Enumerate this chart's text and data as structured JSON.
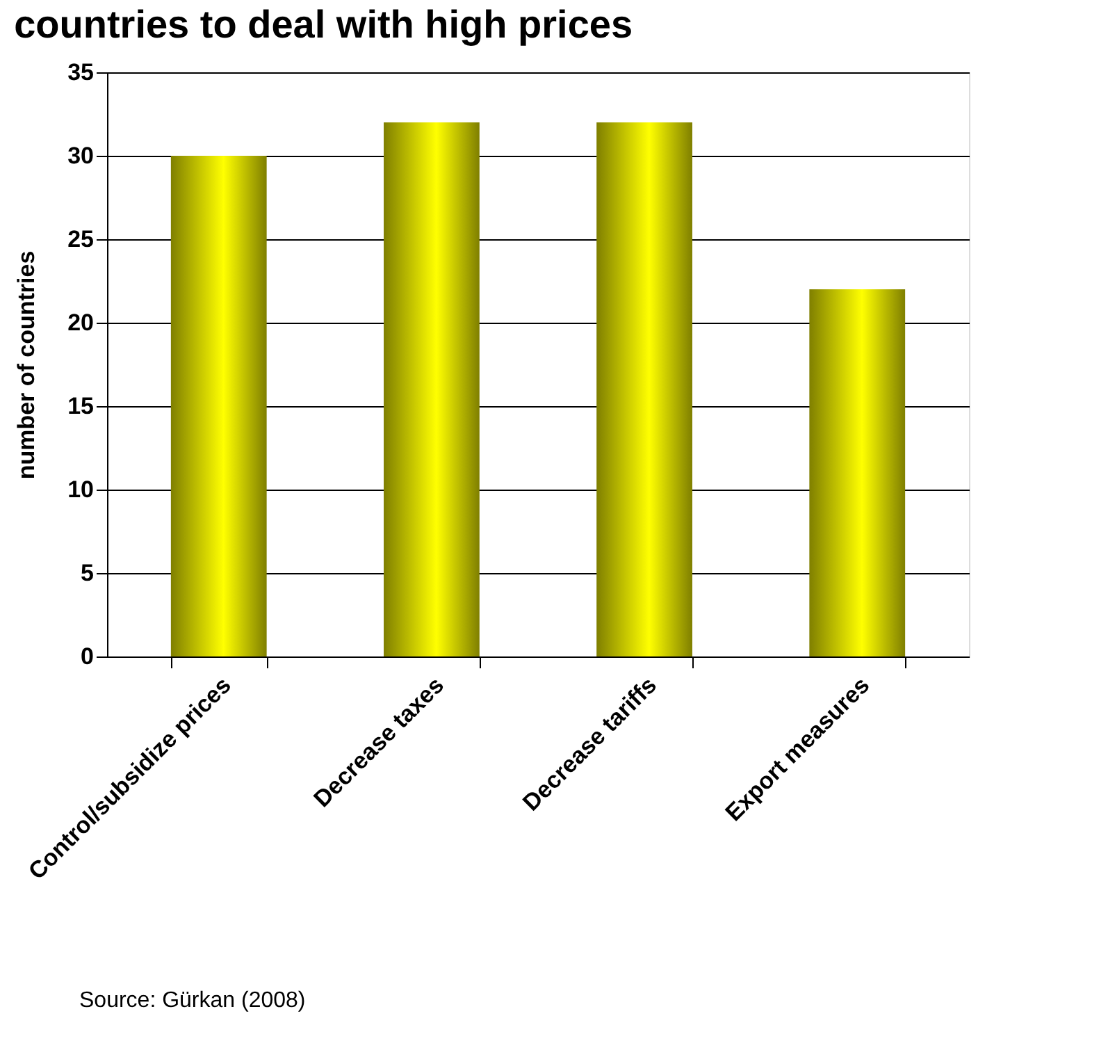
{
  "chart_data": {
    "type": "bar",
    "title": "countries to deal with high prices",
    "ylabel": "number of countries",
    "categories": [
      "Control/subsidize prices",
      "Decrease taxes",
      "Decrease tariffs",
      "Export measures"
    ],
    "values": [
      30,
      32,
      32,
      22
    ],
    "color": "#ffff00",
    "ylim": [
      0,
      35
    ],
    "yticks": [
      0,
      5,
      10,
      15,
      20,
      25,
      30,
      35
    ],
    "grid": "y",
    "annotations": [
      "Source: Gürkan (2008)"
    ]
  }
}
